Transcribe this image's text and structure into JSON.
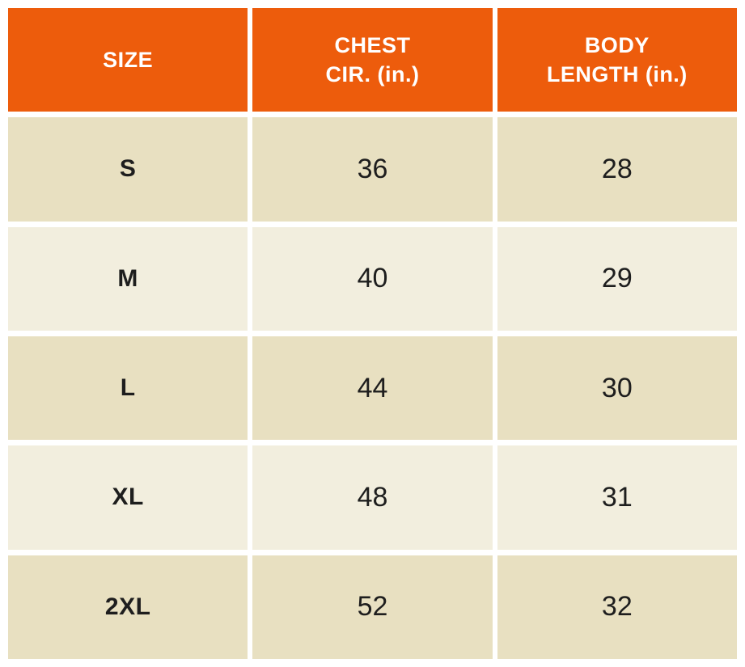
{
  "colors": {
    "header_bg": "#ED5C0C",
    "header_text": "#FFFFFF",
    "row_odd_bg": "#E8E0C1",
    "row_even_bg": "#F2EEDE",
    "cell_text": "#1E1E1E",
    "page_bg": "#FFFFFF"
  },
  "table": {
    "columns": [
      {
        "label": "SIZE"
      },
      {
        "label": "CHEST\nCIR. (in.)"
      },
      {
        "label": "BODY\nLENGTH (in.)"
      }
    ],
    "rows": [
      {
        "size": "S",
        "chest": "36",
        "body_length": "28"
      },
      {
        "size": "M",
        "chest": "40",
        "body_length": "29"
      },
      {
        "size": "L",
        "chest": "44",
        "body_length": "30"
      },
      {
        "size": "XL",
        "chest": "48",
        "body_length": "31"
      },
      {
        "size": "2XL",
        "chest": "52",
        "body_length": "32"
      }
    ]
  },
  "chart_data": {
    "type": "table",
    "columns": [
      "SIZE",
      "CHEST CIR. (in.)",
      "BODY LENGTH (in.)"
    ],
    "rows": [
      [
        "S",
        36,
        28
      ],
      [
        "M",
        40,
        29
      ],
      [
        "L",
        44,
        30
      ],
      [
        "XL",
        48,
        31
      ],
      [
        "2XL",
        52,
        32
      ]
    ]
  }
}
